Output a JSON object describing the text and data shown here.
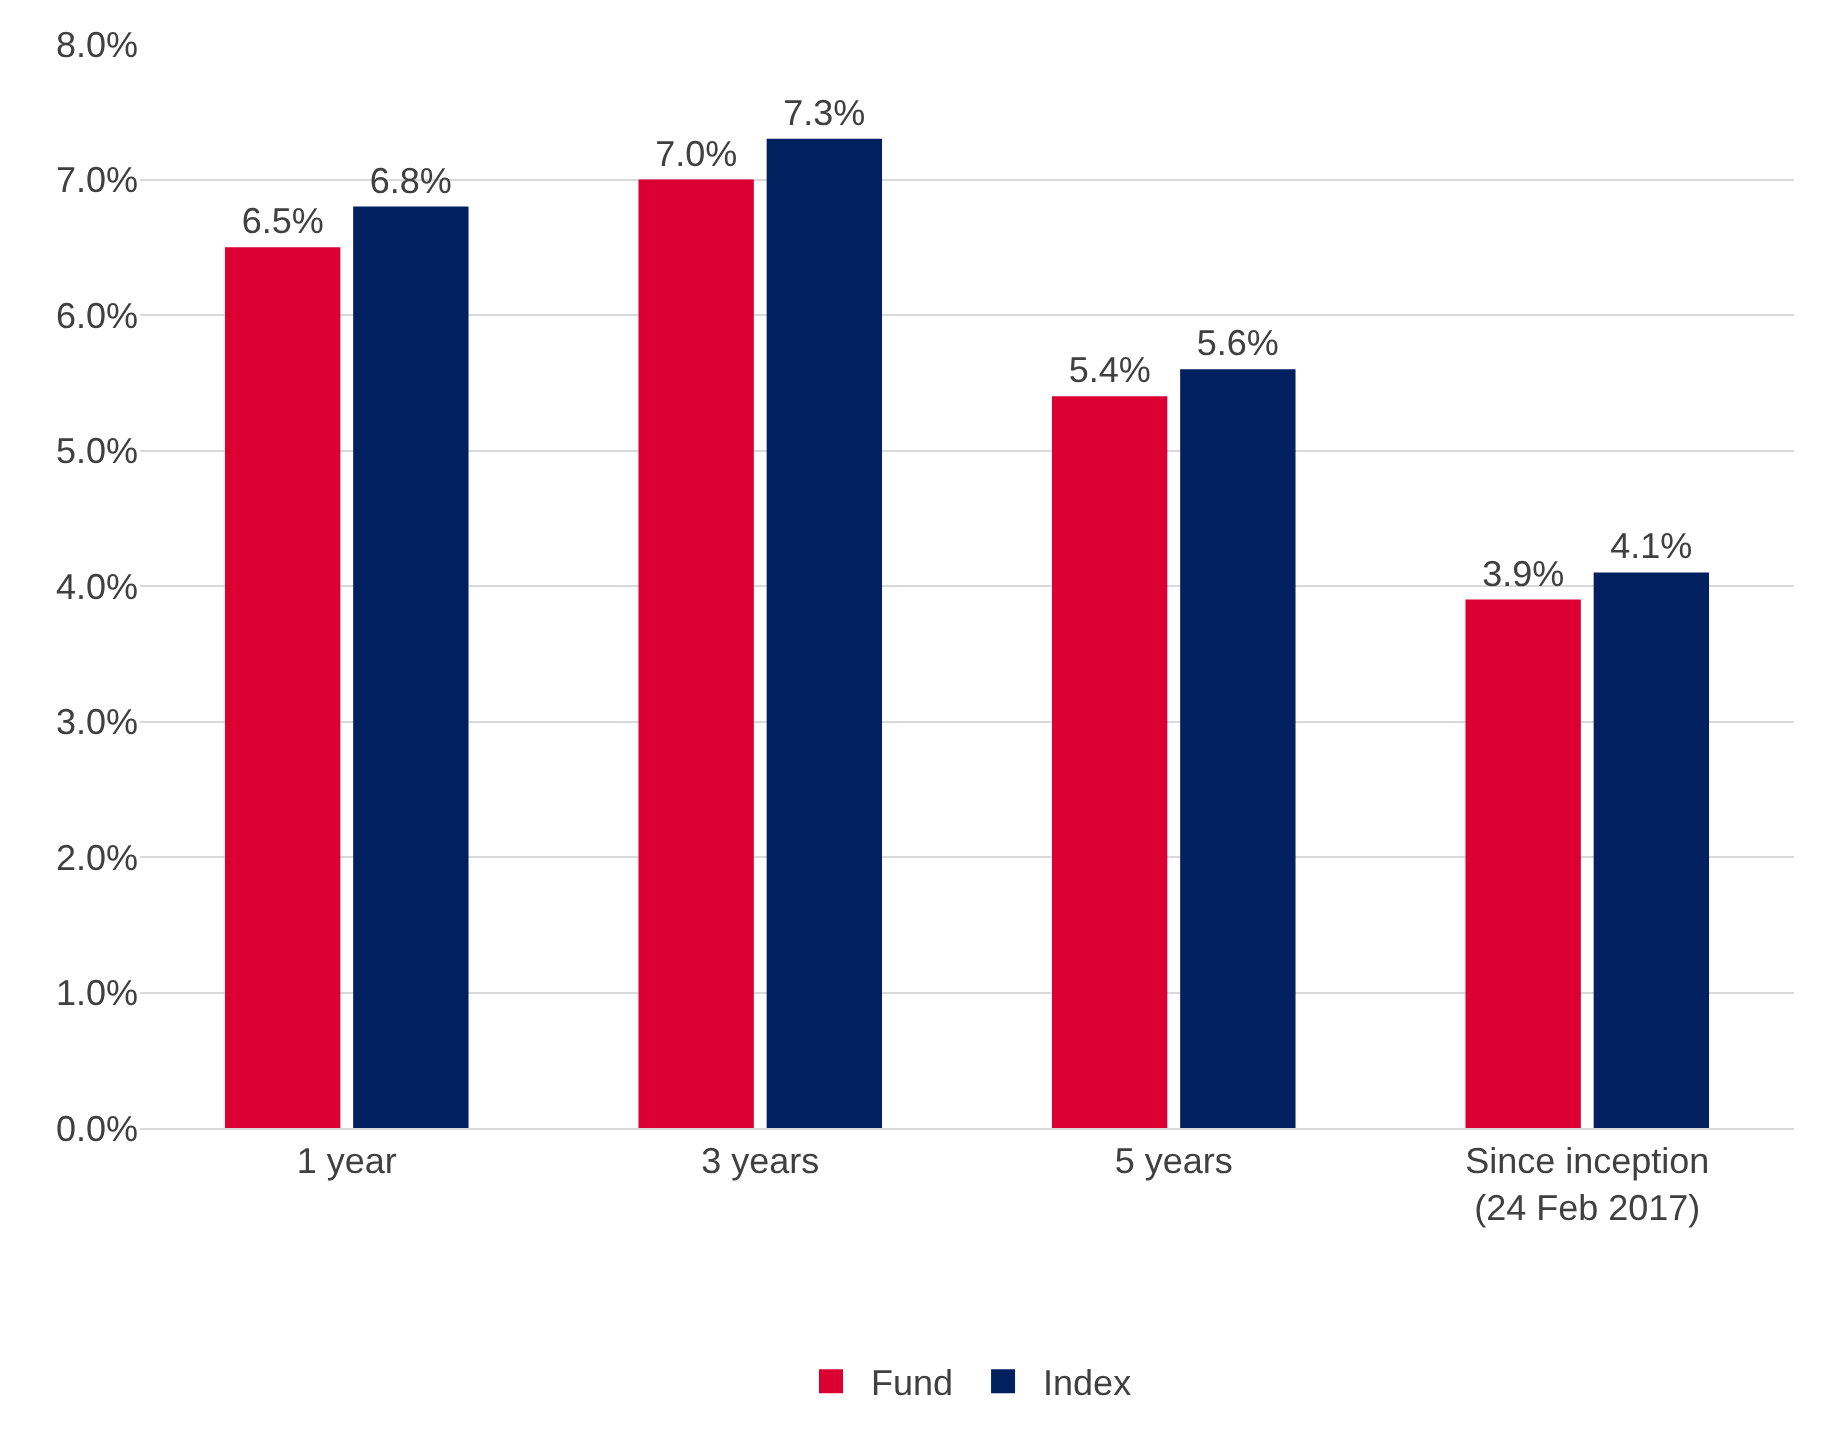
{
  "chart_data": {
    "type": "bar",
    "categories": [
      "1 year",
      "3 years",
      "5 years",
      "Since inception (24 Feb 2017)"
    ],
    "series": [
      {
        "name": "Fund",
        "color": "#dc0032",
        "values": [
          6.5,
          7.0,
          5.4,
          3.9
        ],
        "value_labels": [
          "6.5%",
          "7.0%",
          "5.4%",
          "3.9%"
        ]
      },
      {
        "name": "Index",
        "color": "#002060",
        "values": [
          6.8,
          7.3,
          5.6,
          4.1
        ],
        "value_labels": [
          "6.8%",
          "7.3%",
          "5.6%",
          "4.1%"
        ]
      }
    ],
    "ylim": [
      0,
      8
    ],
    "yticks": [
      {
        "value": 0,
        "label": "0.0%"
      },
      {
        "value": 1,
        "label": "1.0%"
      },
      {
        "value": 2,
        "label": "2.0%"
      },
      {
        "value": 3,
        "label": "3.0%"
      },
      {
        "value": 4,
        "label": "4.0%"
      },
      {
        "value": 5,
        "label": "5.0%"
      },
      {
        "value": 6,
        "label": "6.0%"
      },
      {
        "value": 7,
        "label": "7.0%"
      },
      {
        "value": 8,
        "label": "8.0%"
      }
    ],
    "grid": "y",
    "legend": "bottom"
  }
}
